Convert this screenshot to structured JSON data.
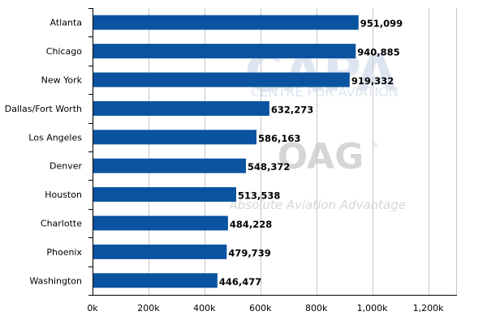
{
  "chart_data": {
    "type": "bar",
    "orientation": "horizontal",
    "categories": [
      "Atlanta",
      "Chicago",
      "New York",
      "Dallas/Fort Worth",
      "Los Angeles",
      "Denver",
      "Houston",
      "Charlotte",
      "Phoenix",
      "Washington"
    ],
    "values": [
      951099,
      940885,
      919332,
      632273,
      586163,
      548372,
      513538,
      484228,
      479739,
      446477
    ],
    "value_labels": [
      "951,099",
      "940,885",
      "919,332",
      "632,273",
      "586,163",
      "548,372",
      "513,538",
      "484,228",
      "479,739",
      "446,477"
    ],
    "xlim": [
      0,
      1300000
    ],
    "xticks": [
      0,
      200000,
      400000,
      600000,
      800000,
      1000000,
      1200000
    ],
    "xtick_labels": [
      "0k",
      "200k",
      "400k",
      "600k",
      "800k",
      "1,000k",
      "1,200k"
    ],
    "grid": true,
    "bar_color": "#0a53a0",
    "title": "",
    "xlabel": "",
    "ylabel": ""
  },
  "watermarks": {
    "capa_logo": "CAPA",
    "capa_subtitle": "CENTRE FOR AVIATION",
    "oag_logo": "OAG",
    "oag_registered": "®",
    "oag_tagline": "Absolute Aviation Advantage"
  }
}
